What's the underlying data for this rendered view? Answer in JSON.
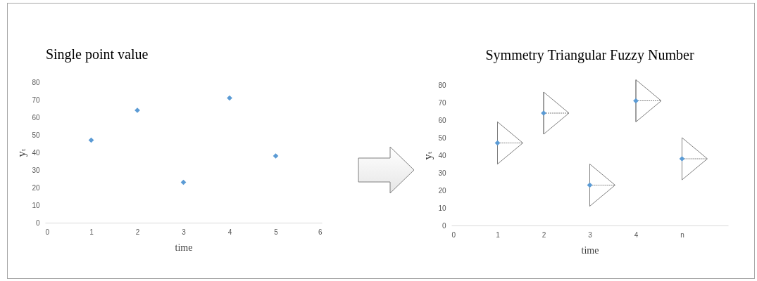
{
  "chart_data": [
    {
      "type": "scatter",
      "title": "Single point value",
      "xlabel": "time",
      "ylabel": "yₜ",
      "x": [
        1,
        2,
        3,
        4,
        5
      ],
      "series": [
        {
          "color": "#5b9bd5",
          "values": [
            47,
            64,
            23,
            71,
            38
          ]
        }
      ],
      "marker": "diamond",
      "xlim": [
        0,
        6
      ],
      "xticks": [
        0,
        1,
        2,
        3,
        4,
        5,
        6
      ],
      "ylim": [
        0,
        80
      ],
      "yticks": [
        0,
        10,
        20,
        30,
        40,
        50,
        60,
        70,
        80
      ],
      "grid": false
    },
    {
      "type": "scatter",
      "title": "Symmetry Triangular Fuzzy Number",
      "xlabel": "time",
      "ylabel": "yₜ",
      "x": [
        1,
        2,
        3,
        4,
        5
      ],
      "series": [
        {
          "color": "#5b9bd5",
          "values": [
            47,
            64,
            23,
            71,
            38
          ],
          "errors": [
            12,
            12,
            12,
            12,
            12
          ]
        }
      ],
      "marker": "diamond",
      "xlim": [
        0,
        6
      ],
      "xticks": [
        0,
        1,
        2,
        3,
        4,
        {
          "value": 5,
          "label": "n"
        }
      ],
      "ylim": [
        0,
        80
      ],
      "yticks": [
        0,
        10,
        20,
        30,
        40,
        50,
        60,
        70,
        80
      ],
      "grid": false
    }
  ]
}
